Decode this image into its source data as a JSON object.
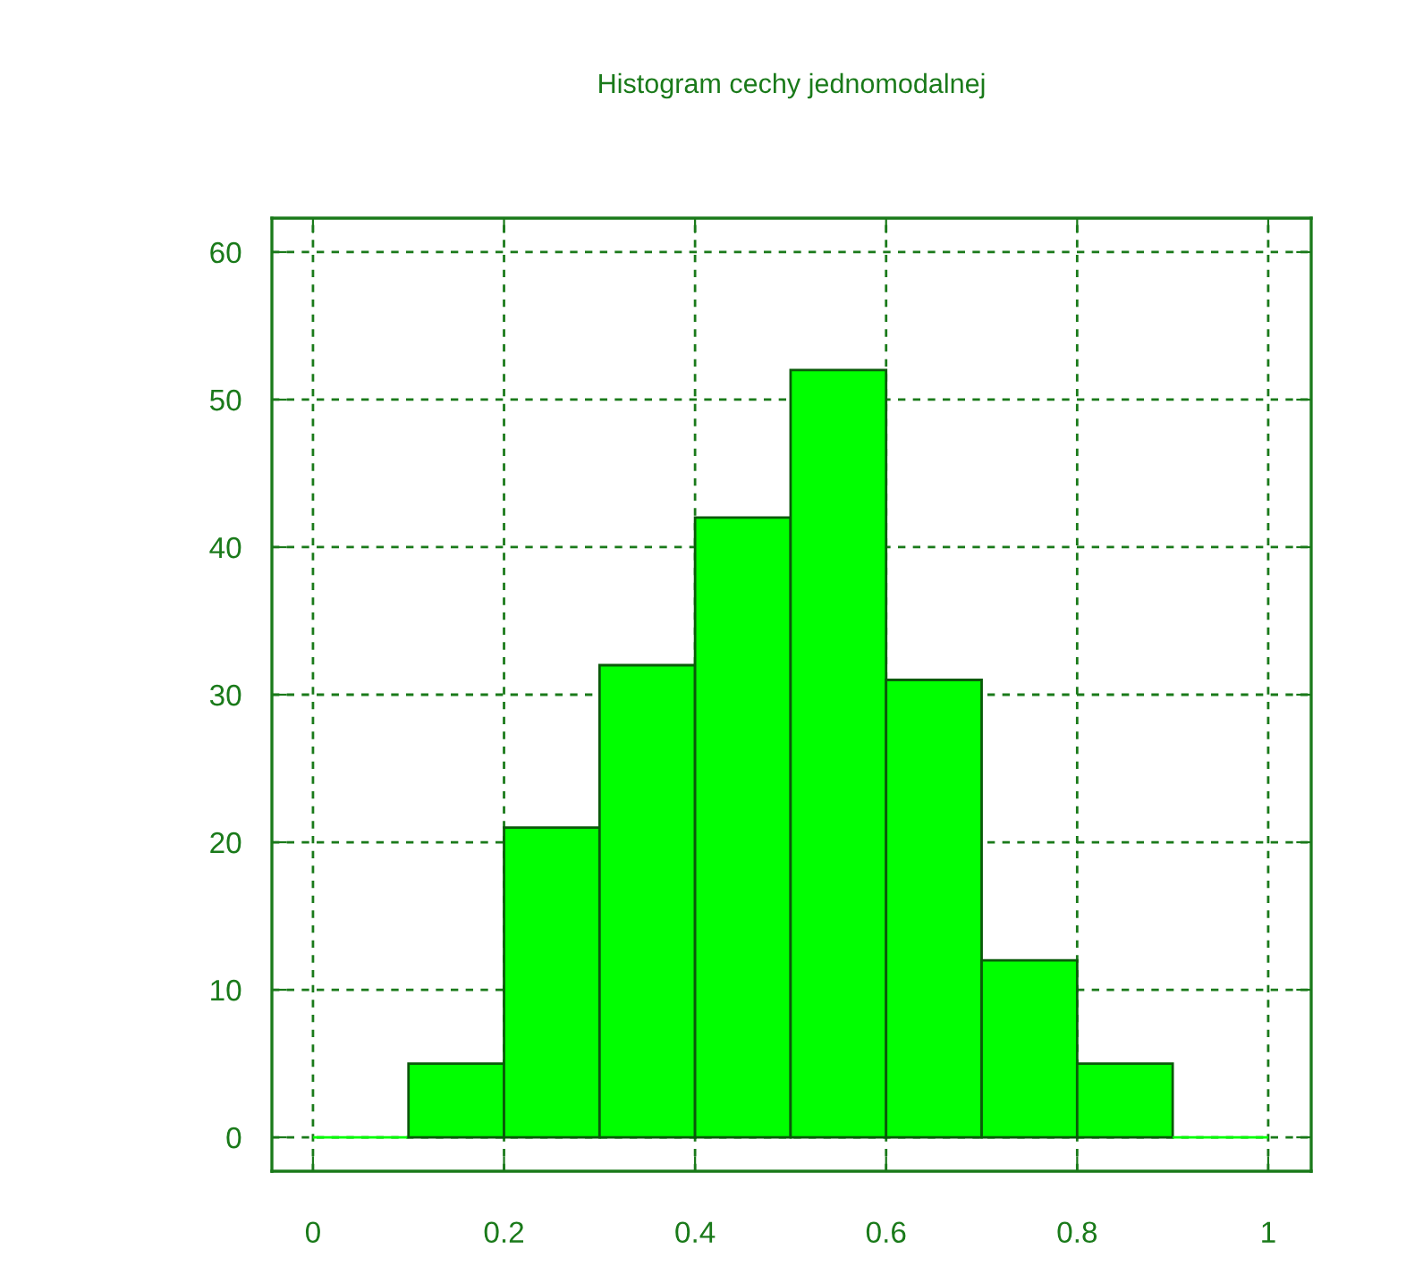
{
  "chart_data": {
    "type": "histogram",
    "title": "Histogram cechy jednomodalnej",
    "bins": [
      0,
      0.1,
      0.2,
      0.3,
      0.4,
      0.5,
      0.6,
      0.7,
      0.8,
      0.9,
      1
    ],
    "values": [
      0,
      5,
      21,
      32,
      42,
      52,
      31,
      12,
      5,
      0
    ],
    "color": "#00ff00",
    "xlim": [
      -0.043,
      1.045
    ],
    "ylim": [
      -2.3,
      62.3
    ],
    "xticks": [
      0,
      0.2,
      0.4,
      0.6,
      0.8,
      1
    ],
    "yticks": [
      0,
      10,
      20,
      30,
      40,
      50,
      60
    ],
    "grid": true
  }
}
